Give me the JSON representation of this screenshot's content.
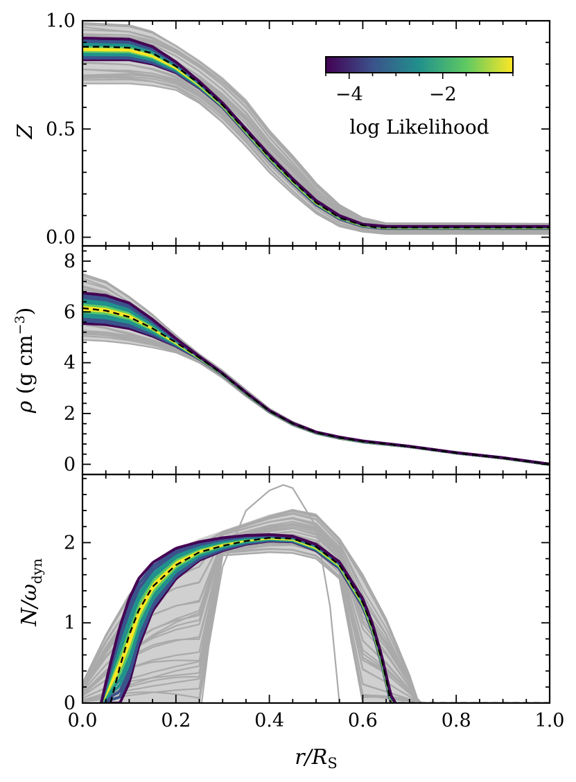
{
  "chart_data": [
    {
      "type": "line",
      "panel": "top",
      "ylabel": "Z",
      "xlim": [
        0.0,
        1.0
      ],
      "ylim": [
        -0.04,
        1.0
      ],
      "yticks": [
        "0.0",
        "0.5",
        "1.0"
      ],
      "ytick_values": [
        0.0,
        0.5,
        1.0
      ],
      "colorbar": {
        "label": "log  Likelihood",
        "ticks": [
          "−4",
          "−2"
        ],
        "tick_values": [
          -4,
          -2
        ],
        "range": [
          -4.5,
          -0.5
        ],
        "colormap": [
          "#440154",
          "#3b528b",
          "#21918c",
          "#5ec962",
          "#fde725"
        ]
      },
      "best_fit": {
        "x": [
          0.0,
          0.05,
          0.1,
          0.15,
          0.2,
          0.25,
          0.3,
          0.35,
          0.4,
          0.45,
          0.5,
          0.55,
          0.6,
          0.63,
          0.65,
          0.7,
          0.8,
          0.9,
          1.0
        ],
        "y": [
          0.88,
          0.88,
          0.875,
          0.85,
          0.79,
          0.71,
          0.61,
          0.49,
          0.37,
          0.26,
          0.16,
          0.09,
          0.055,
          0.045,
          0.045,
          0.045,
          0.045,
          0.045,
          0.045
        ]
      },
      "band": {
        "x": [
          0.0,
          0.1,
          0.15,
          0.2,
          0.25,
          0.3,
          0.35,
          0.4,
          0.45,
          0.5,
          0.55,
          0.6,
          0.65,
          1.0
        ],
        "upper": [
          0.92,
          0.915,
          0.88,
          0.81,
          0.72,
          0.62,
          0.5,
          0.38,
          0.27,
          0.17,
          0.1,
          0.06,
          0.05,
          0.05
        ],
        "lower": [
          0.82,
          0.82,
          0.8,
          0.76,
          0.69,
          0.6,
          0.48,
          0.36,
          0.25,
          0.15,
          0.085,
          0.05,
          0.04,
          0.04
        ]
      },
      "samples_envelope": {
        "x": [
          0.0,
          0.1,
          0.15,
          0.2,
          0.25,
          0.3,
          0.35,
          0.4,
          0.45,
          0.5,
          0.55,
          0.6,
          0.65,
          1.0
        ],
        "upper": [
          0.99,
          0.98,
          0.95,
          0.89,
          0.82,
          0.74,
          0.64,
          0.5,
          0.38,
          0.25,
          0.15,
          0.09,
          0.065,
          0.065
        ],
        "lower": [
          0.71,
          0.71,
          0.7,
          0.68,
          0.62,
          0.53,
          0.42,
          0.3,
          0.2,
          0.11,
          0.05,
          0.025,
          0.015,
          0.015
        ]
      }
    },
    {
      "type": "line",
      "panel": "middle",
      "ylabel": "ρ (g cm⁻³)",
      "xlim": [
        0.0,
        1.0
      ],
      "ylim": [
        -0.4,
        8.6
      ],
      "yticks": [
        "0",
        "2",
        "4",
        "6",
        "8"
      ],
      "ytick_values": [
        0,
        2,
        4,
        6,
        8
      ],
      "best_fit": {
        "x": [
          0.0,
          0.05,
          0.1,
          0.15,
          0.2,
          0.25,
          0.3,
          0.35,
          0.4,
          0.45,
          0.5,
          0.55,
          0.6,
          0.7,
          0.8,
          0.9,
          1.0
        ],
        "y": [
          6.15,
          6.05,
          5.8,
          5.35,
          4.8,
          4.2,
          3.55,
          2.8,
          2.1,
          1.6,
          1.25,
          1.05,
          0.9,
          0.7,
          0.45,
          0.25,
          0.0
        ]
      },
      "band": {
        "x": [
          0.0,
          0.05,
          0.1,
          0.15,
          0.2,
          0.25,
          0.3,
          0.35,
          0.4,
          0.45,
          0.5,
          0.55,
          0.6,
          0.7,
          0.8,
          0.9,
          1.0
        ],
        "upper": [
          6.75,
          6.65,
          6.35,
          5.7,
          4.95,
          4.25,
          3.58,
          2.83,
          2.12,
          1.62,
          1.27,
          1.07,
          0.92,
          0.71,
          0.46,
          0.26,
          0.01
        ],
        "lower": [
          5.55,
          5.5,
          5.35,
          5.05,
          4.65,
          4.15,
          3.52,
          2.77,
          2.08,
          1.58,
          1.23,
          1.03,
          0.88,
          0.69,
          0.44,
          0.24,
          -0.01
        ]
      },
      "samples_envelope": {
        "x": [
          0.0,
          0.05,
          0.1,
          0.15,
          0.2,
          0.25,
          0.3,
          0.35,
          0.4,
          0.45,
          0.5,
          0.55,
          0.6,
          0.7,
          0.8,
          0.9,
          1.0
        ],
        "upper": [
          7.5,
          7.2,
          6.6,
          5.9,
          5.1,
          4.35,
          3.7,
          2.95,
          2.2,
          1.68,
          1.3,
          1.1,
          0.94,
          0.72,
          0.47,
          0.27,
          0.02
        ],
        "lower": [
          4.9,
          4.85,
          4.75,
          4.6,
          4.4,
          4.0,
          3.4,
          2.68,
          2.02,
          1.53,
          1.2,
          1.0,
          0.86,
          0.68,
          0.43,
          0.23,
          -0.02
        ]
      }
    },
    {
      "type": "line",
      "panel": "bottom",
      "ylabel": "N/ωdyn",
      "xlabel": "r/RS",
      "xlim": [
        0.0,
        1.0
      ],
      "ylim": [
        0.0,
        2.85
      ],
      "xticks": [
        "0.0",
        "0.2",
        "0.4",
        "0.6",
        "0.8",
        "1.0"
      ],
      "xtick_values": [
        0.0,
        0.2,
        0.4,
        0.6,
        0.8,
        1.0
      ],
      "yticks": [
        "0",
        "1",
        "2"
      ],
      "ytick_values": [
        0,
        1,
        2
      ],
      "best_fit": {
        "x": [
          0.06,
          0.08,
          0.1,
          0.12,
          0.15,
          0.2,
          0.25,
          0.3,
          0.35,
          0.4,
          0.45,
          0.5,
          0.55,
          0.6,
          0.62,
          0.64,
          0.65,
          0.66,
          1.0
        ],
        "y": [
          0.0,
          0.45,
          0.85,
          1.15,
          1.45,
          1.72,
          1.88,
          1.96,
          2.02,
          2.06,
          2.05,
          1.95,
          1.72,
          1.25,
          0.95,
          0.55,
          0.3,
          0.0,
          0.0
        ]
      },
      "band": {
        "x": [
          0.04,
          0.06,
          0.08,
          0.1,
          0.12,
          0.15,
          0.2,
          0.25,
          0.3,
          0.35,
          0.4,
          0.45,
          0.5,
          0.55,
          0.6,
          0.62,
          0.64,
          0.66,
          0.67
        ],
        "upper": [
          0.0,
          0.5,
          0.95,
          1.3,
          1.55,
          1.75,
          1.93,
          2.01,
          2.06,
          2.09,
          2.1,
          2.08,
          1.98,
          1.76,
          1.3,
          1.0,
          0.6,
          0.1,
          0.0
        ],
        "lower": [
          0.0,
          0.0,
          0.0,
          0.25,
          0.7,
          1.15,
          1.55,
          1.78,
          1.9,
          1.98,
          2.02,
          2.01,
          1.9,
          1.68,
          1.2,
          0.9,
          0.5,
          0.0,
          0.0
        ]
      },
      "samples_envelope": {
        "x": [
          0.0,
          0.05,
          0.1,
          0.15,
          0.2,
          0.25,
          0.3,
          0.35,
          0.4,
          0.45,
          0.5,
          0.55,
          0.6,
          0.65,
          0.7,
          0.72
        ],
        "upper": [
          0.25,
          0.85,
          1.35,
          1.7,
          1.92,
          2.05,
          2.15,
          2.25,
          2.35,
          2.42,
          2.35,
          2.05,
          1.6,
          1.05,
          0.35,
          0.0
        ],
        "lower": [
          0.0,
          0.0,
          0.0,
          0.0,
          0.0,
          0.0,
          1.84,
          1.86,
          1.88,
          1.87,
          1.8,
          1.55,
          0.0,
          0.0,
          0.0,
          0.0
        ]
      },
      "outlier_sample": {
        "x": [
          0.255,
          0.27,
          0.3,
          0.35,
          0.4,
          0.43,
          0.45,
          0.5,
          0.53,
          0.55
        ],
        "y": [
          0.0,
          0.7,
          1.7,
          2.4,
          2.65,
          2.72,
          2.68,
          2.2,
          1.2,
          0.0
        ]
      }
    }
  ]
}
